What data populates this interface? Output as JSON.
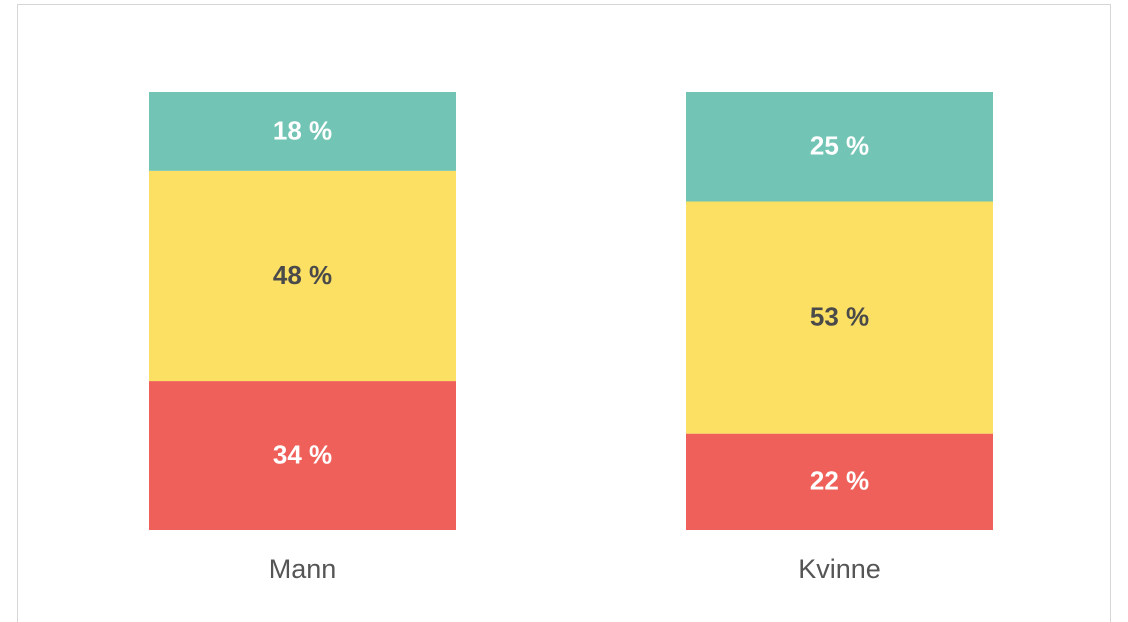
{
  "chart_data": {
    "type": "stacked_bar",
    "categories": [
      "Mann",
      "Kvinne"
    ],
    "ylim": [
      0,
      100
    ],
    "series": [
      {
        "color": "#f0605a",
        "label_color": "#ffffff",
        "values": [
          34,
          22
        ],
        "value_labels": [
          "34 %",
          "22 %"
        ]
      },
      {
        "color": "#fce064",
        "label_color": "#4a4a4a",
        "values": [
          48,
          53
        ],
        "value_labels": [
          "48 %",
          "53 %"
        ]
      },
      {
        "color": "#72c4b4",
        "label_color": "#ffffff",
        "values": [
          18,
          25
        ],
        "value_labels": [
          "18 %",
          "25 %"
        ]
      }
    ]
  }
}
